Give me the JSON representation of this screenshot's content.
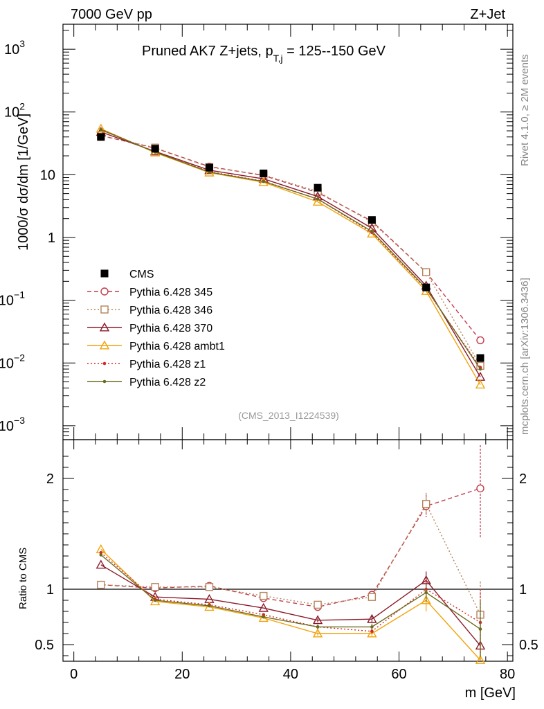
{
  "header": {
    "left": "7000 GeV pp",
    "right": "Z+Jet",
    "plot_title_main": "Pruned AK7 Z+jets, p",
    "plot_title_sub": "T,j",
    "plot_title_tail": " = 125--150 GeV",
    "analysis_id": "(CMS_2013_I1224539)",
    "side_text_top": "Rivet 4.1.0, ≥ 2M events",
    "side_text_bottom": "mcplots.cern.ch [arXiv:1306.3436]"
  },
  "axes": {
    "ylabel_main": "1000/σ  dσ/dm [1/GeV]",
    "ylabel_ratio": "Ratio to CMS",
    "xlabel": "m [GeV]",
    "x_ticks": [
      0,
      20,
      40,
      60,
      80
    ],
    "main_yticks": [
      {
        "value": 0.001,
        "mant": "10",
        "exp": "−3"
      },
      {
        "value": 0.01,
        "mant": "10",
        "exp": "−2"
      },
      {
        "value": 0.1,
        "mant": "10",
        "exp": "−1"
      },
      {
        "value": 1,
        "mant": "1",
        "exp": ""
      },
      {
        "value": 10,
        "mant": "10",
        "exp": ""
      },
      {
        "value": 100,
        "mant": "10",
        "exp": "2"
      },
      {
        "value": 1000,
        "mant": "10",
        "exp": "3"
      }
    ],
    "ratio_yticks": [
      {
        "value": 0.5,
        "label": "0.5"
      },
      {
        "value": 1,
        "label": "1"
      },
      {
        "value": 2,
        "label": "2"
      }
    ]
  },
  "chart_data": {
    "type": "line",
    "title": "Pruned AK7 Z+jets, pT,j = 125--150 GeV",
    "xlabel": "m [GeV]",
    "ylabel": "1000/σ dσ/dm [1/GeV]",
    "ratio_ylabel": "Ratio to CMS",
    "xlim": [
      -2,
      81
    ],
    "ylim": [
      0.0006,
      2500
    ],
    "ylog": true,
    "ratio_ylim": [
      0.35,
      2.35
    ],
    "x": [
      5,
      15,
      25,
      35,
      45,
      55,
      65,
      75
    ],
    "reference": {
      "name": "CMS",
      "values": [
        40,
        26,
        13,
        10.5,
        6.2,
        1.9,
        0.16,
        0.012
      ]
    },
    "series": [
      {
        "name": "Pythia 6.428 345",
        "color": "#c0394b",
        "dash": "6,4",
        "marker": "circle-open",
        "values": [
          42,
          26.5,
          13.5,
          9.7,
          5.2,
          1.82,
          0.28,
          0.023
        ],
        "ratio": [
          1.04,
          1.01,
          1.03,
          0.92,
          0.84,
          0.95,
          1.75,
          1.91
        ],
        "ratio_err": [
          0,
          0,
          0,
          0,
          0.02,
          0.03,
          0.1,
          0.45
        ]
      },
      {
        "name": "Pythia 6.428 346",
        "color": "#b5835a",
        "dash": "2,3",
        "marker": "square-open",
        "values": [
          42,
          27,
          13.2,
          9.9,
          5.4,
          1.75,
          0.28,
          0.009
        ],
        "ratio": [
          1.04,
          1.02,
          1.02,
          0.94,
          0.86,
          0.93,
          1.77,
          0.77
        ],
        "ratio_err": [
          0,
          0,
          0,
          0,
          0.02,
          0.03,
          0.1,
          0.3
        ]
      },
      {
        "name": "Pythia 6.428 370",
        "color": "#8b1a2b",
        "dash": "",
        "marker": "triangle-open",
        "values": [
          48,
          23.5,
          11.8,
          8.6,
          4.5,
          1.4,
          0.17,
          0.006
        ],
        "ratio": [
          1.22,
          0.93,
          0.91,
          0.83,
          0.72,
          0.73,
          1.08,
          0.49
        ],
        "ratio_err": [
          0,
          0,
          0,
          0,
          0.02,
          0.03,
          0.08,
          0.2
        ]
      },
      {
        "name": "Pythia 6.428 ambt1",
        "color": "#f0a30a",
        "dash": "",
        "marker": "triangle-open",
        "values": [
          54,
          22.5,
          10.8,
          7.6,
          3.7,
          1.15,
          0.14,
          0.0045
        ],
        "ratio": [
          1.36,
          0.89,
          0.84,
          0.74,
          0.6,
          0.6,
          0.9,
          0.36
        ],
        "ratio_err": [
          0,
          0,
          0,
          0,
          0.02,
          0.03,
          0.1,
          0.15
        ]
      },
      {
        "name": "Pythia 6.428 z1",
        "color": "#d62728",
        "dash": "2,3",
        "marker": "dot",
        "values": [
          53,
          23,
          11.2,
          7.9,
          4.1,
          1.2,
          0.15,
          0.0085
        ],
        "ratio": [
          1.33,
          0.91,
          0.86,
          0.77,
          0.66,
          0.62,
          1.0,
          0.7
        ],
        "ratio_err": [
          0,
          0,
          0,
          0,
          0.02,
          0.03,
          0.08,
          0.3
        ]
      },
      {
        "name": "Pythia 6.428 z2",
        "color": "#6b6b1e",
        "dash": "",
        "marker": "dot",
        "values": [
          52,
          23,
          11.0,
          7.8,
          4.1,
          1.25,
          0.155,
          0.008
        ],
        "ratio": [
          1.31,
          0.9,
          0.85,
          0.75,
          0.66,
          0.66,
          0.97,
          0.64
        ],
        "ratio_err": [
          0,
          0,
          0,
          0,
          0.02,
          0.03,
          0.08,
          0.25
        ]
      }
    ]
  }
}
